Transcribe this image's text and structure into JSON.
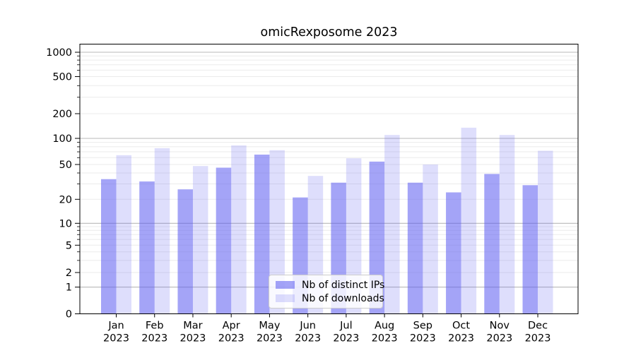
{
  "chart_data": {
    "type": "bar",
    "title": "omicRexposome 2023",
    "categories": [
      "Jan",
      "Feb",
      "Mar",
      "Apr",
      "May",
      "Jun",
      "Jul",
      "Aug",
      "Sep",
      "Oct",
      "Nov",
      "Dec"
    ],
    "year": "2023",
    "series": [
      {
        "name": "Nb of distinct IPs",
        "values": [
          34,
          32,
          26,
          46,
          65,
          21,
          31,
          54,
          31,
          24,
          39,
          29
        ],
        "color": "#5a5af0",
        "opacity": 0.55
      },
      {
        "name": "Nb of downloads",
        "values": [
          64,
          77,
          48,
          83,
          73,
          37,
          59,
          110,
          50,
          135,
          110,
          72
        ],
        "color": "#5a5af0",
        "opacity": 0.2
      }
    ],
    "yscale": "symlog",
    "y_tick_values": [
      0,
      1,
      2,
      5,
      10,
      20,
      50,
      100,
      200,
      500,
      1000
    ],
    "ylim": [
      0,
      1260
    ],
    "grid": true,
    "legend_position": "lower center"
  },
  "colors": {
    "background": "#ffffff",
    "major_grid": "#b8b8b8",
    "minor_grid": "#ebebeb",
    "spine": "#000000",
    "text": "#000000",
    "bar_fill": "#5a5af0",
    "legend_border": "#cccccc",
    "legend_bg": "rgba(255,255,255,0.8)"
  }
}
